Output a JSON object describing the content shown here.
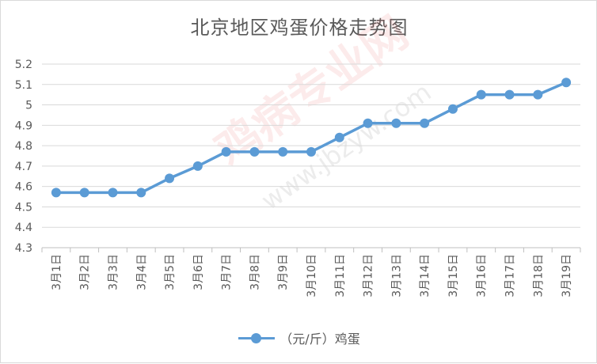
{
  "chart_data": {
    "type": "line",
    "title": "北京地区鸡蛋价格走势图",
    "categories": [
      "3月1日",
      "3月2日",
      "3月3日",
      "3月4日",
      "3月5日",
      "3月6日",
      "3月7日",
      "3月8日",
      "3月9日",
      "3月10日",
      "3月11日",
      "3月12日",
      "3月13日",
      "3月14日",
      "3月15日",
      "3月16日",
      "3月17日",
      "3月18日",
      "3月19日"
    ],
    "series": [
      {
        "name": "（元/斤）鸡蛋",
        "values": [
          4.57,
          4.57,
          4.57,
          4.57,
          4.64,
          4.7,
          4.77,
          4.77,
          4.77,
          4.77,
          4.84,
          4.91,
          4.91,
          4.91,
          4.98,
          5.05,
          5.05,
          5.05,
          5.11
        ]
      }
    ],
    "y_ticks": [
      "4.3",
      "4.4",
      "4.5",
      "4.6",
      "4.7",
      "4.8",
      "4.9",
      "5",
      "5.1",
      "5.2"
    ],
    "ylim": [
      4.3,
      5.2
    ],
    "grid": true,
    "legend_position": "bottom",
    "color": "#5b9bd5"
  },
  "watermark": {
    "text": "鸡病专业网",
    "url": "www.jbzyw.com"
  }
}
